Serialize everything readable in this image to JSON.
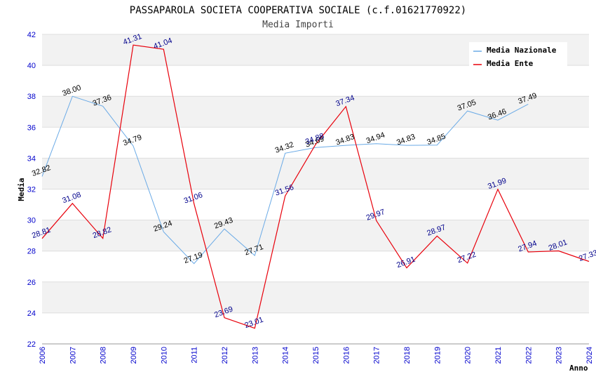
{
  "chart_data": {
    "type": "line",
    "title": "PASSAPAROLA SOCIETA COOPERATIVA SOCIALE (c.f.01621770922)",
    "subtitle": "Media Importi",
    "xlabel": "Anno",
    "ylabel": "Media",
    "ylim": [
      22,
      42
    ],
    "yticks": [
      22,
      24,
      26,
      28,
      30,
      32,
      34,
      36,
      38,
      40,
      42
    ],
    "x": [
      2006,
      2007,
      2008,
      2009,
      2010,
      2011,
      2012,
      2013,
      2014,
      2015,
      2016,
      2017,
      2018,
      2019,
      2020,
      2021,
      2022,
      2023,
      2024
    ],
    "legend_position": "top-right",
    "grid": true,
    "series": [
      {
        "name": "Media Nazionale",
        "color": "#6aaae6",
        "label_color": "#000000",
        "x": [
          2006,
          2007,
          2008,
          2009,
          2010,
          2011,
          2012,
          2013,
          2014,
          2015,
          2016,
          2017,
          2018,
          2019,
          2020,
          2021,
          2022
        ],
        "values": [
          32.82,
          38.0,
          37.36,
          34.79,
          29.24,
          27.19,
          29.43,
          27.71,
          34.32,
          34.69,
          34.83,
          34.94,
          34.83,
          34.85,
          37.05,
          36.46,
          37.49
        ],
        "labels": [
          "32.82",
          "38.00",
          "37.36",
          "34.79",
          "29.24",
          "27.19",
          "29.43",
          "27.71",
          "34.32",
          "34.69",
          "34.83",
          "34.94",
          "34.83",
          "34.85",
          "37.05",
          "36.46",
          "37.49"
        ]
      },
      {
        "name": "Media Ente",
        "color": "#e8000b",
        "label_color": "#00008b",
        "x": [
          2006,
          2007,
          2008,
          2009,
          2010,
          2011,
          2012,
          2013,
          2014,
          2015,
          2016,
          2017,
          2018,
          2019,
          2020,
          2021,
          2022,
          2023,
          2024
        ],
        "values": [
          28.81,
          31.08,
          28.82,
          41.31,
          41.04,
          31.06,
          23.69,
          23.01,
          31.56,
          34.88,
          37.34,
          29.97,
          26.91,
          28.97,
          27.22,
          31.99,
          27.94,
          28.01,
          27.33
        ],
        "labels": [
          "28.81",
          "31.08",
          "28.82",
          "41.31",
          "41.04",
          "31.06",
          "23.69",
          "23.01",
          "31.56",
          "34.88",
          "37.34",
          "29.97",
          "26.91",
          "28.97",
          "27.22",
          "31.99",
          "27.94",
          "28.01",
          "27.33"
        ]
      }
    ]
  }
}
